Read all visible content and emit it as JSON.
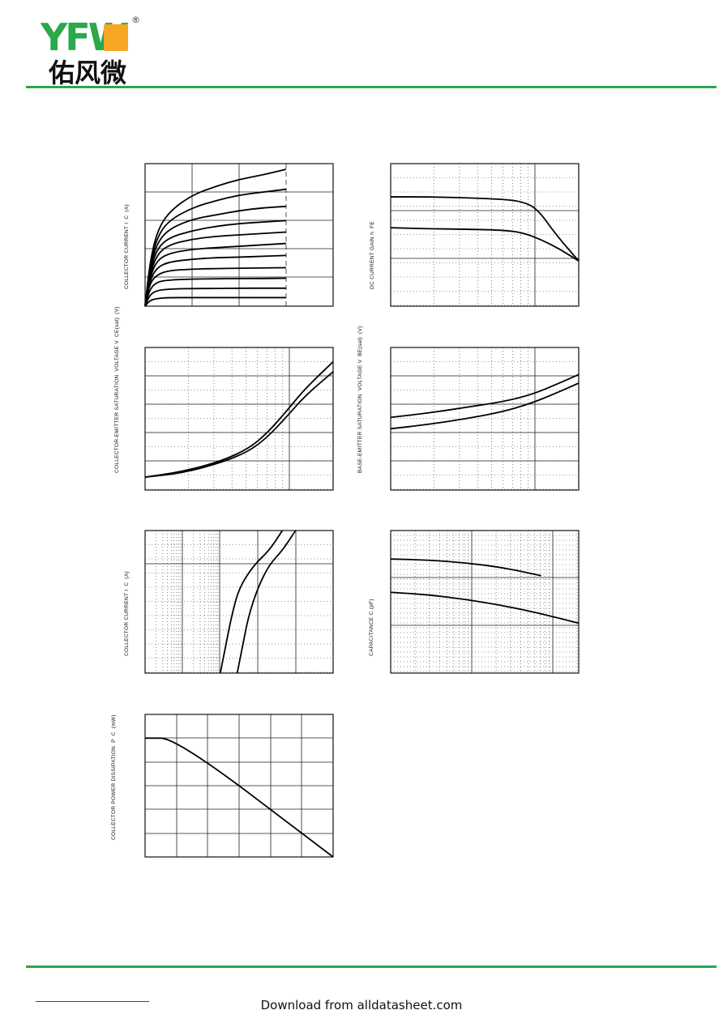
{
  "brand": {
    "latin": "YFW",
    "chinese": "佑风微",
    "registered": "®",
    "colors": {
      "green": "#2aa84a",
      "orange": "#f5a623"
    }
  },
  "footer": {
    "text": "Download from alldatasheet.com"
  },
  "charts": [
    {
      "id": "c1",
      "ylabel_lines": [
        "COLLECTOR CURRENT   I",
        "C",
        "(A)"
      ]
    },
    {
      "id": "c2",
      "ylabel_lines": [
        "DC CURRENT GAIN   h",
        "FE"
      ]
    },
    {
      "id": "c3",
      "ylabel_lines": [
        "COLLECTOR-EMITTER SATURATION",
        "VOLTAGE   V",
        "CE(sat)",
        "(V)"
      ]
    },
    {
      "id": "c4",
      "ylabel_lines": [
        "BASE-EMITTER SATURATION",
        "VOLTAGE   V",
        "BE(sat)",
        "(V)"
      ]
    },
    {
      "id": "c5",
      "ylabel_lines": [
        "COLLECTOR CURRENT   I",
        "C",
        "(A)"
      ]
    },
    {
      "id": "c6",
      "ylabel_lines": [
        "CAPACITANCE   C   (pF)"
      ]
    },
    {
      "id": "c7",
      "ylabel_lines": [
        "COLLECTOR POWER DISSIPATION",
        "P",
        "C",
        "(mW)"
      ]
    }
  ],
  "chart_data": [
    {
      "type": "line",
      "series": [
        {
          "x": [
            0,
            0.2,
            0.5,
            1,
            2,
            3,
            4,
            5,
            6
          ],
          "y": [
            0,
            1.5,
            2.6,
            3.3,
            3.9,
            4.2,
            4.45,
            4.6,
            4.8
          ]
        },
        {
          "x": [
            0,
            0.2,
            0.5,
            1,
            2,
            3,
            4,
            5,
            6
          ],
          "y": [
            0,
            1.4,
            2.4,
            3.0,
            3.45,
            3.7,
            3.9,
            4.0,
            4.1
          ]
        },
        {
          "x": [
            0,
            0.2,
            0.5,
            1,
            2,
            3,
            4,
            5,
            6
          ],
          "y": [
            0,
            1.3,
            2.2,
            2.7,
            3.05,
            3.2,
            3.35,
            3.45,
            3.5
          ]
        },
        {
          "x": [
            0,
            0.2,
            0.5,
            1,
            2,
            3,
            4,
            5,
            6
          ],
          "y": [
            0,
            1.2,
            2.0,
            2.4,
            2.65,
            2.8,
            2.9,
            2.95,
            3.0
          ]
        },
        {
          "x": [
            0,
            0.2,
            0.5,
            1,
            2,
            3,
            4,
            5,
            6
          ],
          "y": [
            0,
            1.1,
            1.8,
            2.15,
            2.35,
            2.45,
            2.5,
            2.55,
            2.6
          ]
        },
        {
          "x": [
            0,
            0.2,
            0.5,
            1,
            2,
            3,
            4,
            5,
            6
          ],
          "y": [
            0,
            1.0,
            1.6,
            1.85,
            2.0,
            2.05,
            2.1,
            2.15,
            2.2
          ]
        },
        {
          "x": [
            0,
            0.2,
            0.5,
            1,
            2,
            3,
            4,
            5,
            6
          ],
          "y": [
            0,
            0.9,
            1.35,
            1.55,
            1.65,
            1.7,
            1.72,
            1.75,
            1.78
          ]
        },
        {
          "x": [
            0,
            0.2,
            0.5,
            1,
            2,
            3,
            4,
            5,
            6
          ],
          "y": [
            0,
            0.8,
            1.1,
            1.25,
            1.3,
            1.32,
            1.33,
            1.34,
            1.35
          ]
        },
        {
          "x": [
            0,
            0.2,
            0.5,
            1,
            2,
            3,
            4,
            5,
            6
          ],
          "y": [
            0,
            0.6,
            0.85,
            0.92,
            0.95,
            0.96,
            0.97,
            0.97,
            0.98
          ]
        },
        {
          "x": [
            0,
            0.2,
            0.5,
            1,
            2,
            3,
            4,
            5,
            6
          ],
          "y": [
            0,
            0.4,
            0.55,
            0.6,
            0.62,
            0.62,
            0.63,
            0.63,
            0.63
          ]
        },
        {
          "x": [
            0,
            0.2,
            0.5,
            1,
            2,
            3,
            4,
            5,
            6
          ],
          "y": [
            0,
            0.2,
            0.27,
            0.3,
            0.3,
            0.3,
            0.3,
            0.3,
            0.3
          ]
        }
      ],
      "xlim": [
        0,
        8
      ],
      "ylim": [
        0,
        5
      ]
    },
    {
      "type": "line",
      "series": [
        {
          "x": [
            0,
            0.2,
            0.4,
            0.6,
            0.7,
            0.78,
            0.88,
            1.0
          ],
          "y": [
            2.3,
            2.3,
            2.28,
            2.25,
            2.2,
            2.05,
            1.5,
            0.95
          ]
        },
        {
          "x": [
            0,
            0.2,
            0.4,
            0.6,
            0.7,
            0.8,
            0.9,
            1.0
          ],
          "y": [
            1.65,
            1.63,
            1.62,
            1.6,
            1.55,
            1.4,
            1.2,
            0.95
          ]
        }
      ],
      "xlim": [
        0,
        1
      ],
      "ylim": [
        0,
        3
      ]
    },
    {
      "type": "line",
      "series": [
        {
          "x": [
            0,
            0.2,
            0.4,
            0.55,
            0.65,
            0.75,
            0.85,
            1.0
          ],
          "y": [
            0.45,
            0.65,
            1.0,
            1.45,
            2.0,
            2.75,
            3.55,
            4.5
          ]
        },
        {
          "x": [
            0,
            0.2,
            0.4,
            0.55,
            0.65,
            0.75,
            0.85,
            1.0
          ],
          "y": [
            0.45,
            0.6,
            0.95,
            1.35,
            1.85,
            2.55,
            3.3,
            4.15
          ]
        }
      ],
      "xlim": [
        0,
        1
      ],
      "ylim": [
        0,
        5
      ]
    },
    {
      "type": "line",
      "series": [
        {
          "x": [
            0,
            0.2,
            0.4,
            0.6,
            0.75,
            0.88,
            1.0
          ],
          "y": [
            2.55,
            2.7,
            2.9,
            3.1,
            3.35,
            3.7,
            4.05
          ]
        },
        {
          "x": [
            0,
            0.2,
            0.4,
            0.6,
            0.75,
            0.88,
            1.0
          ],
          "y": [
            2.15,
            2.3,
            2.5,
            2.75,
            3.05,
            3.4,
            3.75
          ]
        }
      ],
      "xlim": [
        0,
        1
      ],
      "ylim": [
        0,
        5
      ]
    },
    {
      "type": "line",
      "series": [
        {
          "x": [
            0.4,
            0.43,
            0.46,
            0.5,
            0.58,
            0.66,
            0.73
          ],
          "y": [
            0,
            1.0,
            2.0,
            3.0,
            3.8,
            4.3,
            5.0
          ]
        },
        {
          "x": [
            0.49,
            0.52,
            0.55,
            0.6,
            0.66,
            0.73,
            0.8
          ],
          "y": [
            0,
            1.0,
            2.0,
            3.0,
            3.8,
            4.3,
            5.0
          ]
        }
      ],
      "xlim": [
        0,
        1
      ],
      "ylim": [
        0,
        5
      ]
    },
    {
      "type": "line",
      "series": [
        {
          "x": [
            0,
            0.2,
            0.4,
            0.6,
            0.8
          ],
          "y": [
            2.4,
            2.38,
            2.32,
            2.22,
            2.05
          ]
        },
        {
          "x": [
            0,
            0.2,
            0.4,
            0.6,
            0.8,
            1.0
          ],
          "y": [
            1.7,
            1.65,
            1.55,
            1.42,
            1.25,
            1.05
          ]
        }
      ],
      "xlim": [
        0,
        1
      ],
      "ylim": [
        0,
        3
      ]
    },
    {
      "type": "line",
      "series": [
        {
          "x": [
            0,
            25,
            150
          ],
          "y": [
            250,
            250,
            0
          ]
        }
      ],
      "xlim": [
        0,
        150
      ],
      "ylim": [
        0,
        300
      ]
    }
  ]
}
